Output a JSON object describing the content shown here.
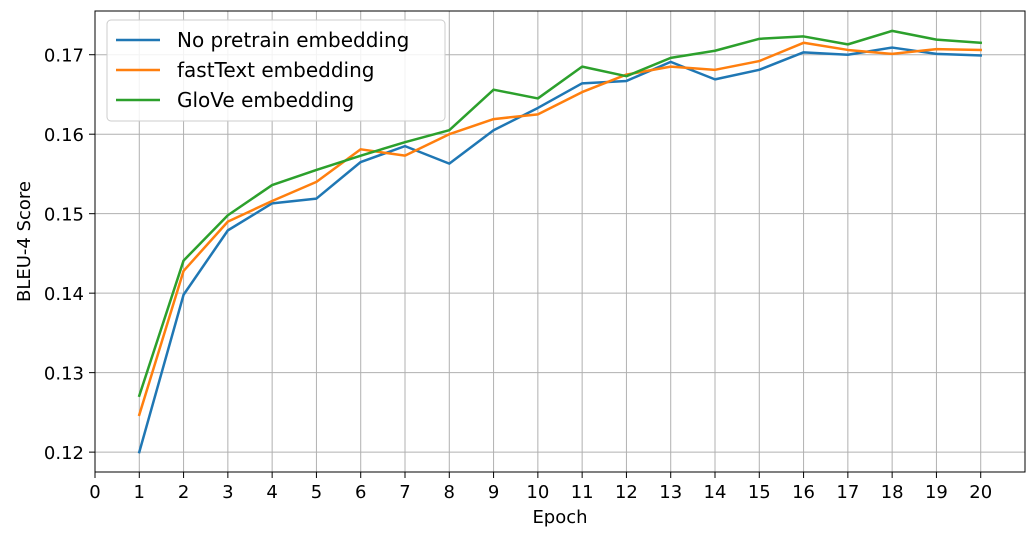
{
  "chart_data": {
    "type": "line",
    "title": "",
    "xlabel": "Epoch",
    "ylabel": "BLEU-4 Score",
    "xlim": [
      0,
      21
    ],
    "ylim": [
      0.1175,
      0.1755
    ],
    "xticks": [
      0,
      1,
      2,
      3,
      4,
      5,
      6,
      7,
      8,
      9,
      10,
      11,
      12,
      13,
      14,
      15,
      16,
      17,
      18,
      19,
      20
    ],
    "yticks": [
      0.12,
      0.13,
      0.14,
      0.15,
      0.16,
      0.17
    ],
    "ytick_labels": [
      "0.12",
      "0.13",
      "0.14",
      "0.15",
      "0.16",
      "0.17"
    ],
    "grid": true,
    "legend_position": "top-left",
    "x": [
      1,
      2,
      3,
      4,
      5,
      6,
      7,
      8,
      9,
      10,
      11,
      12,
      13,
      14,
      15,
      16,
      17,
      18,
      19,
      20
    ],
    "series": [
      {
        "name": "No pretrain embedding",
        "color": "#1f77b4",
        "values": [
          0.12,
          0.1398,
          0.1479,
          0.1513,
          0.1519,
          0.1565,
          0.1585,
          0.1563,
          0.1605,
          0.1633,
          0.1664,
          0.1667,
          0.1691,
          0.1669,
          0.1681,
          0.1703,
          0.17,
          0.1709,
          0.1701,
          0.1699
        ]
      },
      {
        "name": "fastText embedding",
        "color": "#ff7f0e",
        "values": [
          0.1247,
          0.1428,
          0.149,
          0.1516,
          0.154,
          0.1581,
          0.1573,
          0.16,
          0.1619,
          0.1625,
          0.1653,
          0.1675,
          0.1685,
          0.1681,
          0.1692,
          0.1715,
          0.1706,
          0.1701,
          0.1707,
          0.1706
        ]
      },
      {
        "name": "GloVe embedding",
        "color": "#2ca02c",
        "values": [
          0.1271,
          0.1441,
          0.1498,
          0.1536,
          0.1555,
          0.1573,
          0.159,
          0.1605,
          0.1656,
          0.1645,
          0.1685,
          0.1673,
          0.1696,
          0.1705,
          0.172,
          0.1723,
          0.1713,
          0.173,
          0.1719,
          0.1715
        ]
      }
    ]
  }
}
